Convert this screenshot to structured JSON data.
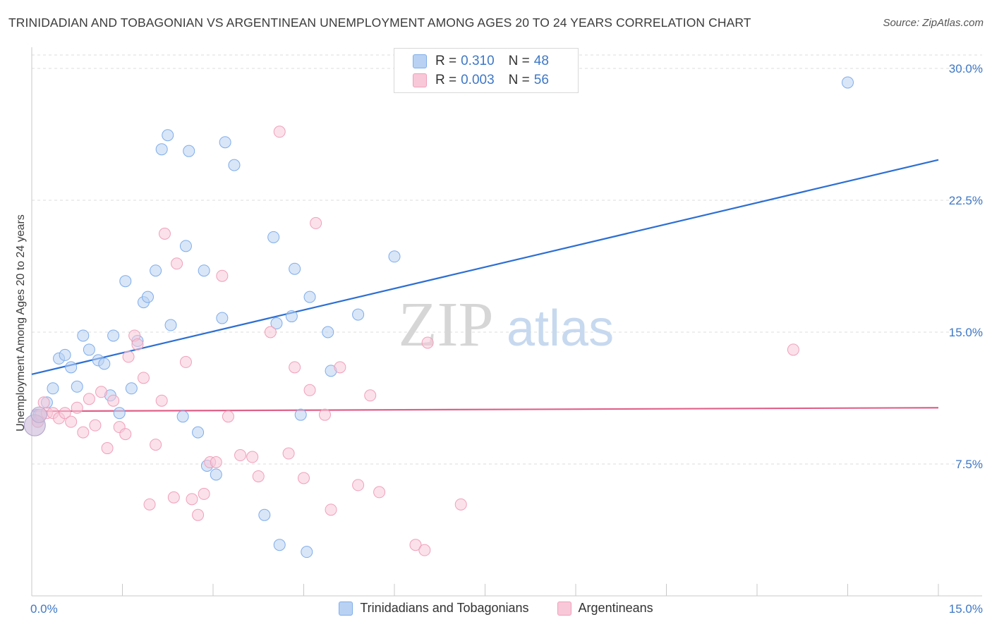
{
  "header": {
    "title": "TRINIDADIAN AND TOBAGONIAN VS ARGENTINEAN UNEMPLOYMENT AMONG AGES 20 TO 24 YEARS CORRELATION CHART",
    "source": "Source: ZipAtlas.com"
  },
  "watermark": {
    "zip": "ZIP",
    "atlas": "atlas"
  },
  "legend": {
    "rows": [
      {
        "r_label": "R = ",
        "r_value": "0.310",
        "n_label": "N = ",
        "n_value": "48"
      },
      {
        "r_label": "R = ",
        "r_value": "0.003",
        "n_label": "N = ",
        "n_value": "56"
      }
    ]
  },
  "chart_data": {
    "type": "scatter",
    "title": "TRINIDADIAN AND TOBAGONIAN VS ARGENTINEAN UNEMPLOYMENT AMONG AGES 20 TO 24 YEARS CORRELATION CHART",
    "xlabel": "",
    "ylabel": "Unemployment Among Ages 20 to 24 years",
    "xlim": [
      0,
      15
    ],
    "ylim": [
      0,
      30
    ],
    "x_tick_labels": [
      "0.0%",
      "15.0%"
    ],
    "y_ticks": [
      7.5,
      15,
      22.5,
      30
    ],
    "y_tick_labels": [
      "7.5%",
      "15.0%",
      "22.5%",
      "30.0%"
    ],
    "grid": "horizontal dashed",
    "series": [
      {
        "name": "Trinidadians and Tobagonians",
        "color": "#7fadea",
        "fill": "#b9d2f3",
        "line_color": "#2d6fd2",
        "trend": {
          "x0": 0,
          "y0": 12.6,
          "x1": 15,
          "y1": 24.8
        },
        "points": [
          [
            0.08,
            10.3
          ],
          [
            0.12,
            10.3
          ],
          [
            0.25,
            11.0
          ],
          [
            0.35,
            11.8
          ],
          [
            0.45,
            13.5
          ],
          [
            0.55,
            13.7
          ],
          [
            0.65,
            13.0
          ],
          [
            0.75,
            11.9
          ],
          [
            0.85,
            14.8
          ],
          [
            0.95,
            14.0
          ],
          [
            1.1,
            13.4
          ],
          [
            1.2,
            13.2
          ],
          [
            1.3,
            11.4
          ],
          [
            1.35,
            14.8
          ],
          [
            1.45,
            10.4
          ],
          [
            1.55,
            17.9
          ],
          [
            1.65,
            11.8
          ],
          [
            1.75,
            14.5
          ],
          [
            1.85,
            16.7
          ],
          [
            1.92,
            17.0
          ],
          [
            2.05,
            18.5
          ],
          [
            2.15,
            25.4
          ],
          [
            2.25,
            26.2
          ],
          [
            2.3,
            15.4
          ],
          [
            2.5,
            10.2
          ],
          [
            2.55,
            19.9
          ],
          [
            2.6,
            25.3
          ],
          [
            2.75,
            9.3
          ],
          [
            2.85,
            18.5
          ],
          [
            2.9,
            7.4
          ],
          [
            3.05,
            6.9
          ],
          [
            3.15,
            15.8
          ],
          [
            3.2,
            25.8
          ],
          [
            3.35,
            24.5
          ],
          [
            3.85,
            4.6
          ],
          [
            4.0,
            20.4
          ],
          [
            4.05,
            15.5
          ],
          [
            4.1,
            2.9
          ],
          [
            4.3,
            15.9
          ],
          [
            4.35,
            18.6
          ],
          [
            4.45,
            10.3
          ],
          [
            4.55,
            2.5
          ],
          [
            4.6,
            17.0
          ],
          [
            4.9,
            15.0
          ],
          [
            4.95,
            12.8
          ],
          [
            5.4,
            16.0
          ],
          [
            6.0,
            19.3
          ],
          [
            13.5,
            29.2
          ]
        ]
      },
      {
        "name": "Argentineans",
        "color": "#f0a0ba",
        "fill": "#f8c8d8",
        "line_color": "#e0608a",
        "trend": {
          "x0": 0,
          "y0": 10.5,
          "x1": 15,
          "y1": 10.7
        },
        "points": [
          [
            0.1,
            9.9
          ],
          [
            0.15,
            10.3
          ],
          [
            0.2,
            11.0
          ],
          [
            0.25,
            10.4
          ],
          [
            0.35,
            10.4
          ],
          [
            0.45,
            10.1
          ],
          [
            0.55,
            10.4
          ],
          [
            0.65,
            9.9
          ],
          [
            0.75,
            10.7
          ],
          [
            0.85,
            9.3
          ],
          [
            0.95,
            11.2
          ],
          [
            1.05,
            9.7
          ],
          [
            1.15,
            11.6
          ],
          [
            1.25,
            8.4
          ],
          [
            1.35,
            11.1
          ],
          [
            1.45,
            9.6
          ],
          [
            1.55,
            9.2
          ],
          [
            1.6,
            13.6
          ],
          [
            1.7,
            14.8
          ],
          [
            1.75,
            14.3
          ],
          [
            1.85,
            12.4
          ],
          [
            1.95,
            5.2
          ],
          [
            2.05,
            8.6
          ],
          [
            2.15,
            11.1
          ],
          [
            2.2,
            20.6
          ],
          [
            2.35,
            5.6
          ],
          [
            2.4,
            18.9
          ],
          [
            2.55,
            13.3
          ],
          [
            2.65,
            5.5
          ],
          [
            2.75,
            4.6
          ],
          [
            2.85,
            5.8
          ],
          [
            2.95,
            7.6
          ],
          [
            3.05,
            7.6
          ],
          [
            3.15,
            18.2
          ],
          [
            3.25,
            10.2
          ],
          [
            3.45,
            8.0
          ],
          [
            3.65,
            7.9
          ],
          [
            3.75,
            6.8
          ],
          [
            3.95,
            15.0
          ],
          [
            4.1,
            26.4
          ],
          [
            4.25,
            8.1
          ],
          [
            4.35,
            13.0
          ],
          [
            4.5,
            6.7
          ],
          [
            4.6,
            11.7
          ],
          [
            4.7,
            21.2
          ],
          [
            4.85,
            10.3
          ],
          [
            4.95,
            4.9
          ],
          [
            5.1,
            13.0
          ],
          [
            5.4,
            6.3
          ],
          [
            5.6,
            11.4
          ],
          [
            5.75,
            5.9
          ],
          [
            6.35,
            2.9
          ],
          [
            6.5,
            2.6
          ],
          [
            6.55,
            14.4
          ],
          [
            7.1,
            5.2
          ],
          [
            12.6,
            14.0
          ]
        ]
      }
    ]
  }
}
